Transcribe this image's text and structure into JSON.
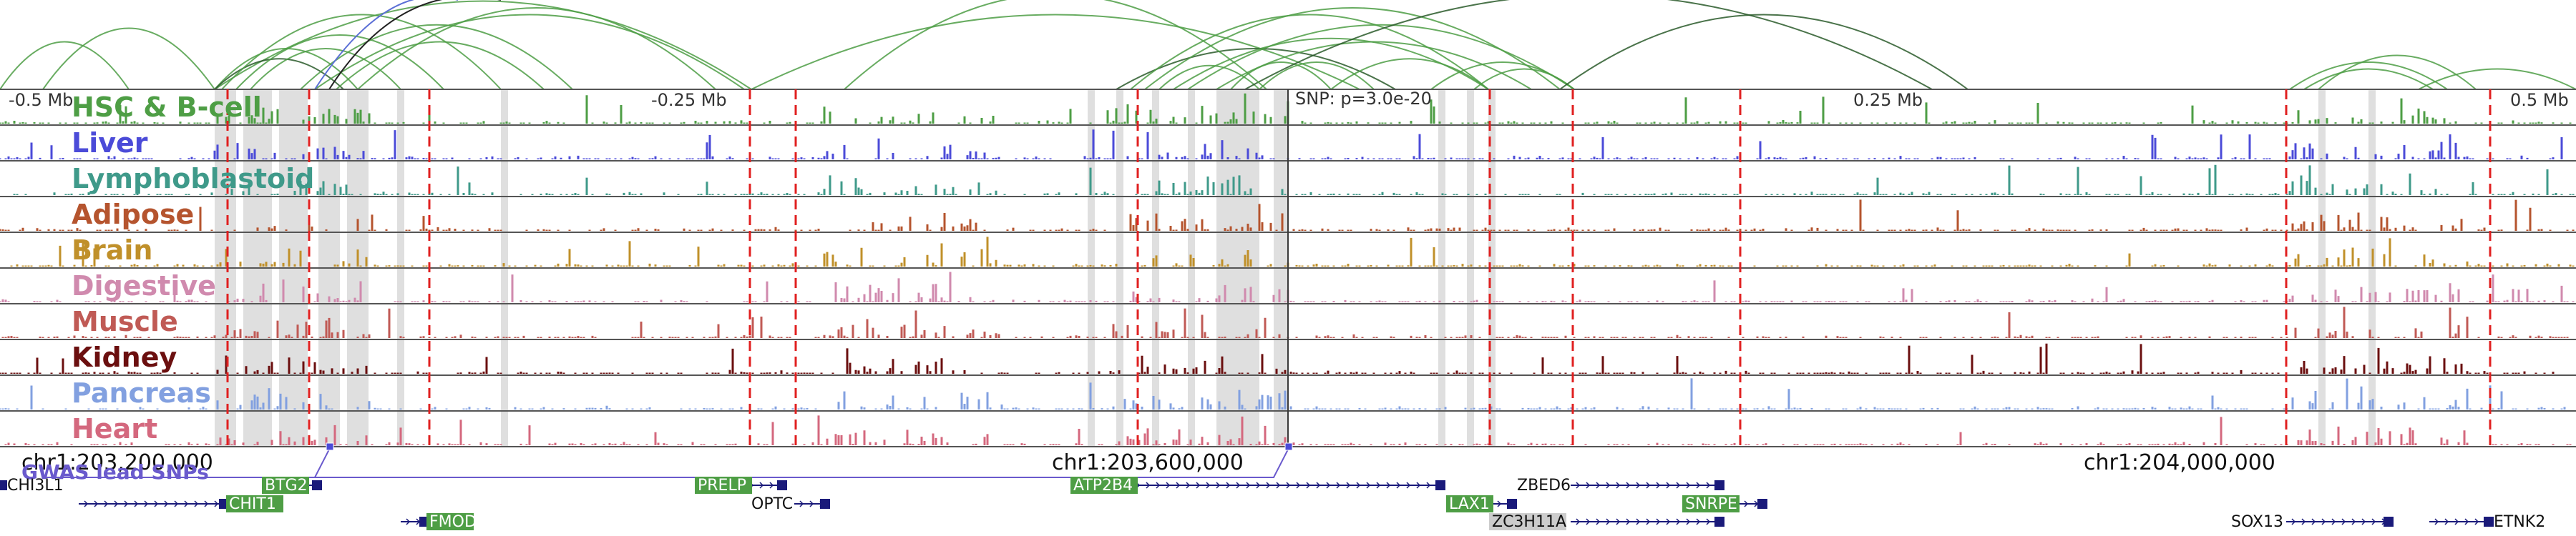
{
  "scale_labels": [
    {
      "text": "-0.5 Mb",
      "pos": 0.0
    },
    {
      "text": "-0.25 Mb",
      "pos": 0.25
    },
    {
      "text": "0.25 Mb",
      "pos": 0.75
    },
    {
      "text": "0.5 Mb",
      "pos": 1.0
    }
  ],
  "snp_label": "SNP: p=3.0e-20",
  "tracks": [
    {
      "name": "HSC & B-cell",
      "color": "#4e9e45"
    },
    {
      "name": "Liver",
      "color": "#4b4bd8"
    },
    {
      "name": "Lymphoblastoid",
      "color": "#3f9a8a"
    },
    {
      "name": "Adipose",
      "color": "#b5542e"
    },
    {
      "name": "Brain",
      "color": "#c0902a"
    },
    {
      "name": "Digestive",
      "color": "#d08aae"
    },
    {
      "name": "Muscle",
      "color": "#c05a55"
    },
    {
      "name": "Kidney",
      "color": "#6b0f0f"
    },
    {
      "name": "Pancreas",
      "color": "#82a0e0"
    },
    {
      "name": "Heart",
      "color": "#d4687e"
    }
  ],
  "coordinates": [
    {
      "text": "chr1:203,200,000",
      "value": 203200000
    },
    {
      "text": "chr1:203,600,000",
      "value": 203600000
    },
    {
      "text": "chr1:204,000,000",
      "value": 204000000
    }
  ],
  "gwas_label": "GWAS lead SNPs",
  "genes": [
    {
      "name": "CHI3L1",
      "boxed": false
    },
    {
      "name": "BTG2",
      "boxed": true,
      "box_color": "#4e9e45"
    },
    {
      "name": "CHIT1",
      "boxed": true,
      "box_color": "#4e9e45"
    },
    {
      "name": "FMOD",
      "boxed": true,
      "box_color": "#4e9e45"
    },
    {
      "name": "PRELP",
      "boxed": true,
      "box_color": "#4e9e45"
    },
    {
      "name": "OPTC",
      "boxed": false
    },
    {
      "name": "ATP2B4",
      "boxed": true,
      "box_color": "#4e9e45"
    },
    {
      "name": "LAX1",
      "boxed": true,
      "box_color": "#4e9e45"
    },
    {
      "name": "ZBED6",
      "boxed": false
    },
    {
      "name": "ZC3H11A",
      "boxed": true,
      "box_color": "#cccccc"
    },
    {
      "name": "SNRPE",
      "boxed": true,
      "box_color": "#4e9e45"
    },
    {
      "name": "SOX13",
      "boxed": false
    },
    {
      "name": "ETNK2",
      "boxed": false
    }
  ]
}
